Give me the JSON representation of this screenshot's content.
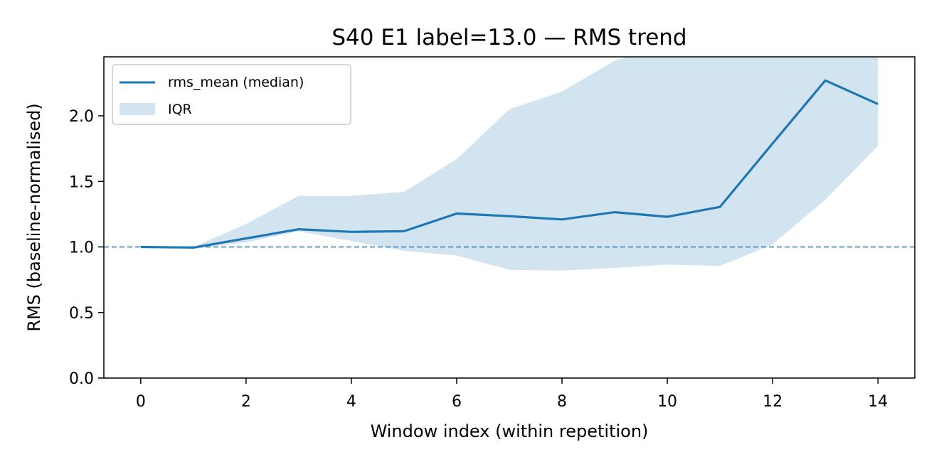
{
  "chart_data": {
    "type": "line",
    "title": "S40 E1 label=13.0 — RMS trend",
    "xlabel": "Window index (within repetition)",
    "ylabel": "RMS (baseline-normalised)",
    "xlim": [
      -0.7,
      14.7
    ],
    "ylim": [
      0.0,
      2.45
    ],
    "xticks": [
      0,
      2,
      4,
      6,
      8,
      10,
      12,
      14
    ],
    "xtick_labels": [
      "0",
      "2",
      "4",
      "6",
      "8",
      "10",
      "12",
      "14"
    ],
    "yticks": [
      0.0,
      0.5,
      1.0,
      1.5,
      2.0
    ],
    "ytick_labels": [
      "0.0",
      "0.5",
      "1.0",
      "1.5",
      "2.0"
    ],
    "grid": false,
    "legend_position": "top-left",
    "x": [
      0,
      1,
      2,
      3,
      4,
      5,
      6,
      7,
      8,
      9,
      10,
      11,
      12,
      13,
      14
    ],
    "series": [
      {
        "name": "rms_mean (median)",
        "kind": "line",
        "color": "#1f77b4",
        "values": [
          1.0,
          0.995,
          1.065,
          1.135,
          1.115,
          1.12,
          1.255,
          1.235,
          1.21,
          1.265,
          1.23,
          1.305,
          1.79,
          2.27,
          2.09
        ]
      },
      {
        "name": "IQR",
        "kind": "band",
        "color": "#1f77b4",
        "opacity": 0.2,
        "lower": [
          1.0,
          0.99,
          1.035,
          1.12,
          1.045,
          0.97,
          0.935,
          0.825,
          0.82,
          0.84,
          0.865,
          0.855,
          1.02,
          1.36,
          1.77
        ],
        "upper": [
          1.0,
          1.0,
          1.175,
          1.39,
          1.39,
          1.42,
          1.67,
          2.05,
          2.185,
          2.42,
          2.55,
          2.6,
          2.6,
          2.6,
          2.5
        ]
      }
    ],
    "reference_line": {
      "y": 1.0,
      "style": "dashed",
      "color": "#1f77b4"
    }
  }
}
